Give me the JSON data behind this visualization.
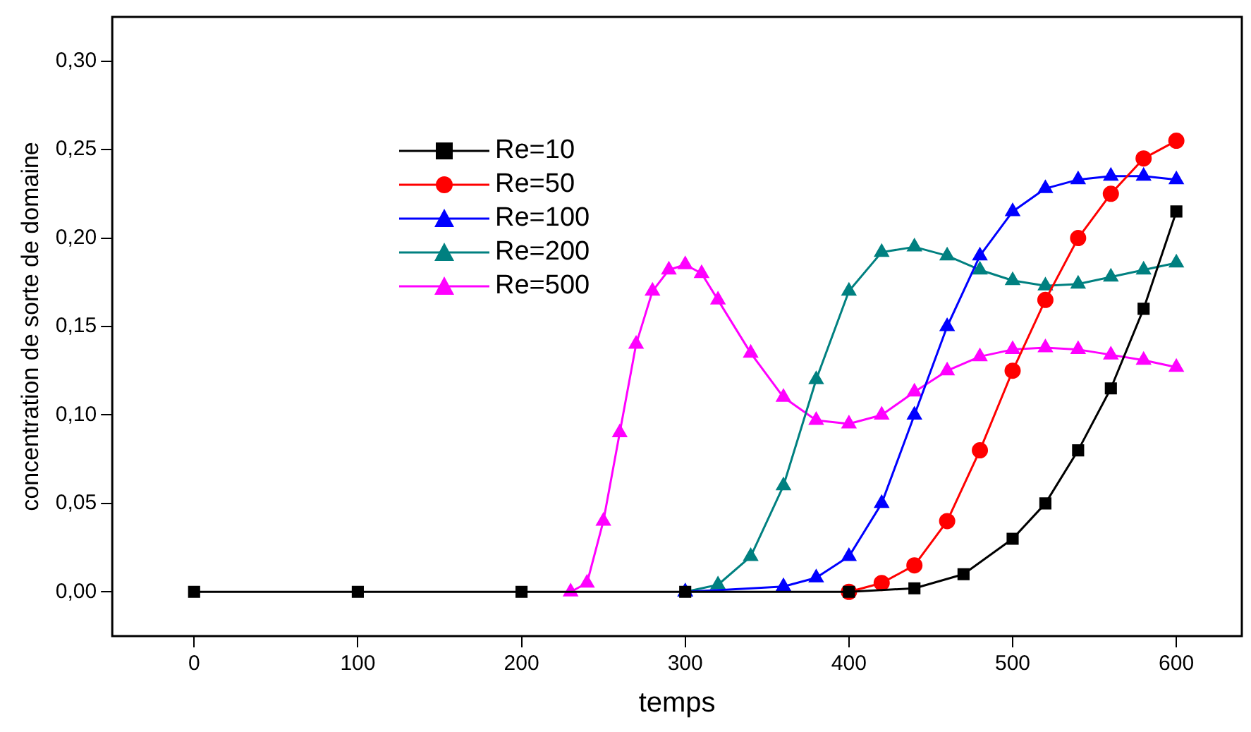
{
  "chart_data": {
    "type": "line",
    "xlabel": "temps",
    "ylabel": "concentration de sorte de domaine",
    "xlim": [
      -50,
      640
    ],
    "xticks": [
      0,
      100,
      200,
      300,
      400,
      500,
      600
    ],
    "ylim": [
      -0.025,
      0.325
    ],
    "yticks": [
      {
        "value": 0,
        "label": "0,00"
      },
      {
        "value": 0.05,
        "label": "0,05"
      },
      {
        "value": 0.1,
        "label": "0,10"
      },
      {
        "value": 0.15,
        "label": "0,15"
      },
      {
        "value": 0.2,
        "label": "0,20"
      },
      {
        "value": 0.25,
        "label": "0,25"
      },
      {
        "value": 0.3,
        "label": "0,30"
      }
    ],
    "grid": false,
    "legend": "top left",
    "line_style": "solid",
    "series": [
      {
        "name": "Re=10",
        "color": "#000000",
        "marker": "square",
        "x": [
          0,
          100,
          200,
          300,
          400,
          440,
          470,
          500,
          520,
          540,
          560,
          580,
          600
        ],
        "values": [
          0,
          0,
          0,
          0,
          0,
          0.002,
          0.01,
          0.03,
          0.05,
          0.08,
          0.115,
          0.16,
          0.215
        ]
      },
      {
        "name": "Re=50",
        "color": "#ff0000",
        "marker": "circle",
        "x": [
          400,
          420,
          440,
          460,
          480,
          500,
          520,
          540,
          560,
          580,
          600
        ],
        "values": [
          0,
          0.005,
          0.015,
          0.04,
          0.08,
          0.125,
          0.165,
          0.2,
          0.225,
          0.245,
          0.255
        ]
      },
      {
        "name": "Re=100",
        "color": "#0000ff",
        "marker": "triangle",
        "x": [
          300,
          360,
          380,
          400,
          420,
          440,
          460,
          480,
          500,
          520,
          540,
          560,
          580,
          600
        ],
        "values": [
          0,
          0.003,
          0.008,
          0.02,
          0.05,
          0.1,
          0.15,
          0.19,
          0.215,
          0.228,
          0.233,
          0.235,
          0.235,
          0.233
        ]
      },
      {
        "name": "Re=200",
        "color": "#008080",
        "marker": "triangle",
        "x": [
          300,
          320,
          340,
          360,
          380,
          400,
          420,
          440,
          460,
          480,
          500,
          520,
          540,
          560,
          580,
          600
        ],
        "values": [
          0,
          0.004,
          0.02,
          0.06,
          0.12,
          0.17,
          0.192,
          0.195,
          0.19,
          0.182,
          0.176,
          0.173,
          0.174,
          0.178,
          0.182,
          0.186
        ]
      },
      {
        "name": "Re=500",
        "color": "#ff00ff",
        "marker": "triangle",
        "x": [
          230,
          240,
          250,
          260,
          270,
          280,
          290,
          300,
          310,
          320,
          340,
          360,
          380,
          400,
          420,
          440,
          460,
          480,
          500,
          520,
          540,
          560,
          580,
          600
        ],
        "values": [
          0,
          0.005,
          0.04,
          0.09,
          0.14,
          0.17,
          0.182,
          0.185,
          0.18,
          0.165,
          0.135,
          0.11,
          0.097,
          0.095,
          0.1,
          0.113,
          0.125,
          0.133,
          0.137,
          0.138,
          0.137,
          0.134,
          0.131,
          0.127
        ]
      }
    ]
  }
}
